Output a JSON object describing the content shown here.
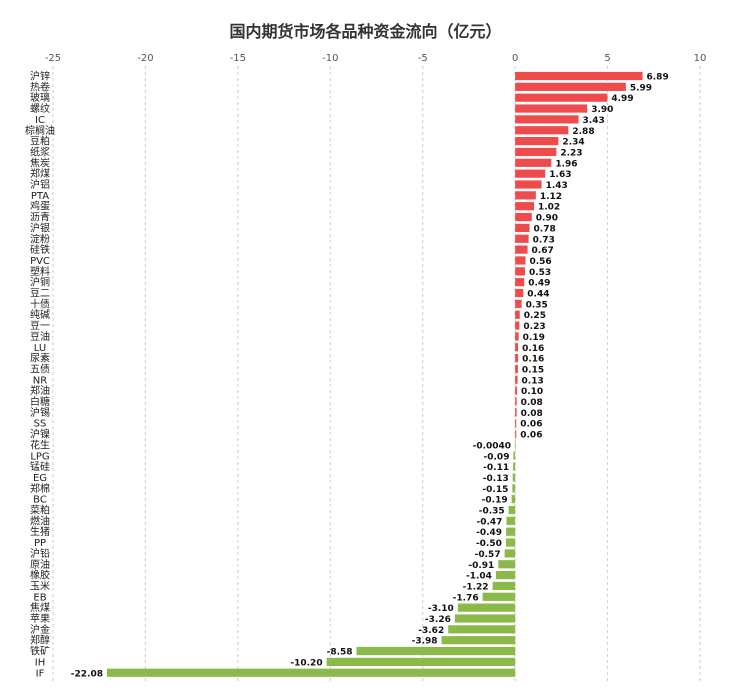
{
  "chart_data": {
    "type": "bar",
    "orientation": "horizontal",
    "title": "国内期货市场各品种资金流向（亿元）",
    "xlim": [
      -25,
      10
    ],
    "xticks": [
      -25,
      -20,
      -15,
      -10,
      -5,
      0,
      5,
      10
    ],
    "grid": true,
    "colors": {
      "positive": "#ee4c4c",
      "negative": "#8bb94a"
    },
    "categories": [
      "沪锌",
      "热卷",
      "玻璃",
      "螺纹",
      "IC",
      "棕榈油",
      "豆粕",
      "纸浆",
      "焦炭",
      "郑煤",
      "沪铝",
      "PTA",
      "鸡蛋",
      "沥青",
      "沪银",
      "淀粉",
      "硅铁",
      "PVC",
      "塑料",
      "沪铜",
      "豆二",
      "十债",
      "纯碱",
      "豆一",
      "豆油",
      "LU",
      "尿素",
      "五债",
      "NR",
      "郑油",
      "白糖",
      "沪锡",
      "SS",
      "沪镍",
      "花生",
      "LPG",
      "锰硅",
      "EG",
      "郑棉",
      "BC",
      "菜粕",
      "燃油",
      "生猪",
      "PP",
      "沪铅",
      "原油",
      "橡胶",
      "玉米",
      "EB",
      "焦煤",
      "苹果",
      "沪金",
      "郑醇",
      "铁矿",
      "IH",
      "IF"
    ],
    "values": [
      6.89,
      5.99,
      4.99,
      3.9,
      3.43,
      2.88,
      2.34,
      2.23,
      1.96,
      1.63,
      1.43,
      1.12,
      1.02,
      0.9,
      0.78,
      0.73,
      0.67,
      0.56,
      0.53,
      0.49,
      0.44,
      0.35,
      0.25,
      0.23,
      0.19,
      0.16,
      0.16,
      0.15,
      0.13,
      0.1,
      0.08,
      0.08,
      0.06,
      0.06,
      -0.004,
      -0.09,
      -0.11,
      -0.13,
      -0.15,
      -0.19,
      -0.35,
      -0.47,
      -0.49,
      -0.5,
      -0.57,
      -0.91,
      -1.04,
      -1.22,
      -1.76,
      -3.1,
      -3.26,
      -3.62,
      -3.98,
      -8.58,
      -10.2,
      -22.08
    ],
    "value_labels": [
      "6.89",
      "5.99",
      "4.99",
      "3.90",
      "3.43",
      "2.88",
      "2.34",
      "2.23",
      "1.96",
      "1.63",
      "1.43",
      "1.12",
      "1.02",
      "0.90",
      "0.78",
      "0.73",
      "0.67",
      "0.56",
      "0.53",
      "0.49",
      "0.44",
      "0.35",
      "0.25",
      "0.23",
      "0.19",
      "0.16",
      "0.16",
      "0.15",
      "0.13",
      "0.10",
      "0.08",
      "0.08",
      "0.06",
      "0.06",
      "-0.0040",
      "-0.09",
      "-0.11",
      "-0.13",
      "-0.15",
      "-0.19",
      "-0.35",
      "-0.47",
      "-0.49",
      "-0.50",
      "-0.57",
      "-0.91",
      "-1.04",
      "-1.22",
      "-1.76",
      "-3.10",
      "-3.26",
      "-3.62",
      "-3.98",
      "-8.58",
      "-10.20",
      "-22.08"
    ]
  }
}
